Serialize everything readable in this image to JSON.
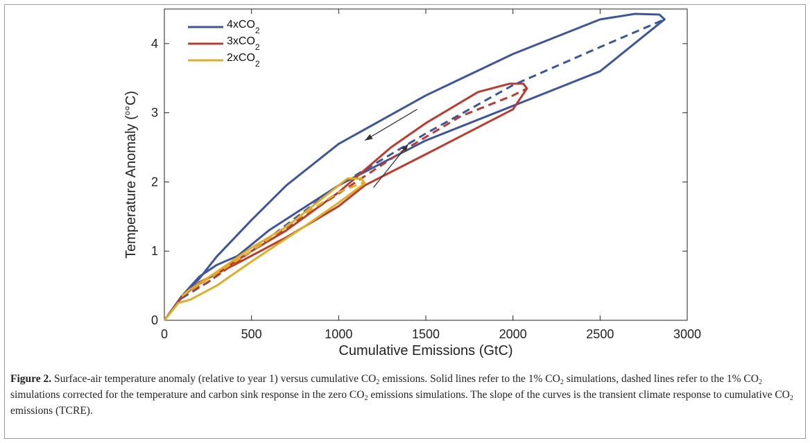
{
  "figure": {
    "caption_label": "Figure 2.",
    "caption_segments": [
      {
        "t": " Surface-air temperature anomaly (relative to year 1) versus cumulative CO"
      },
      {
        "sub": "2"
      },
      {
        "t": " emissions. Solid lines refer to the 1% CO"
      },
      {
        "sub": "2"
      },
      {
        "t": " simulations, dashed lines refer to the 1% CO"
      },
      {
        "sub": "2"
      },
      {
        "t": " simulations corrected for the temperature and carbon sink response in the zero CO"
      },
      {
        "sub": "2"
      },
      {
        "t": " emissions simulations. The slope of the curves is the transient climate response to cumulative CO"
      },
      {
        "sub": "2"
      },
      {
        "t": " emissions (TCRE)."
      }
    ]
  },
  "chart_data": {
    "type": "line",
    "xlabel": "Cumulative Emissions (GtC)",
    "ylabel_main": "Temperature Anomaly (",
    "ylabel_unit": "°C)",
    "xlim": [
      0,
      3000
    ],
    "ylim": [
      0,
      4.5
    ],
    "xticks": [
      0,
      500,
      1000,
      1500,
      2000,
      2500,
      3000
    ],
    "yticks": [
      0,
      1,
      2,
      3,
      4
    ],
    "grid": false,
    "legend_position": "top-left",
    "series": [
      {
        "name": "4xCO",
        "name_sub": "2",
        "color": "#3a55a4",
        "solid": [
          [
            0,
            0
          ],
          [
            100,
            0.35
          ],
          [
            200,
            0.63
          ],
          [
            300,
            0.8
          ],
          [
            420,
            0.93
          ],
          [
            600,
            1.3
          ],
          [
            1000,
            1.95
          ],
          [
            1500,
            2.6
          ],
          [
            2000,
            3.1
          ],
          [
            2500,
            3.6
          ],
          [
            2820,
            4.25
          ],
          [
            2870,
            4.35
          ],
          [
            2840,
            4.42
          ],
          [
            2700,
            4.43
          ],
          [
            2500,
            4.35
          ],
          [
            2000,
            3.85
          ],
          [
            1500,
            3.25
          ],
          [
            1000,
            2.55
          ],
          [
            700,
            1.95
          ],
          [
            500,
            1.45
          ],
          [
            300,
            0.92
          ],
          [
            200,
            0.6
          ],
          [
            130,
            0.42
          ],
          [
            100,
            0.32
          ]
        ],
        "dashed": [
          [
            100,
            0.32
          ],
          [
            250,
            0.55
          ],
          [
            500,
            1.0
          ],
          [
            1000,
            1.95
          ],
          [
            1500,
            2.7
          ],
          [
            2000,
            3.4
          ],
          [
            2500,
            3.95
          ],
          [
            2870,
            4.35
          ]
        ]
      },
      {
        "name": "3xCO",
        "name_sub": "2",
        "color": "#c0392b",
        "solid": [
          [
            0,
            0
          ],
          [
            100,
            0.33
          ],
          [
            200,
            0.55
          ],
          [
            400,
            0.8
          ],
          [
            700,
            1.2
          ],
          [
            1000,
            1.65
          ],
          [
            1150,
            1.95
          ],
          [
            1500,
            2.4
          ],
          [
            2000,
            3.05
          ],
          [
            2080,
            3.35
          ],
          [
            2060,
            3.42
          ],
          [
            1980,
            3.42
          ],
          [
            1800,
            3.3
          ],
          [
            1500,
            2.85
          ],
          [
            1300,
            2.5
          ],
          [
            1000,
            1.85
          ],
          [
            700,
            1.3
          ],
          [
            500,
            1.0
          ],
          [
            300,
            0.68
          ],
          [
            150,
            0.45
          ],
          [
            100,
            0.35
          ]
        ],
        "dashed": [
          [
            100,
            0.35
          ],
          [
            250,
            0.55
          ],
          [
            500,
            1.0
          ],
          [
            800,
            1.5
          ],
          [
            1100,
            2.0
          ],
          [
            1400,
            2.5
          ],
          [
            1700,
            2.95
          ],
          [
            2000,
            3.25
          ],
          [
            2080,
            3.35
          ]
        ]
      },
      {
        "name": "2xCO",
        "name_sub": "2",
        "color": "#e1ad21",
        "solid": [
          [
            0,
            0
          ],
          [
            80,
            0.25
          ],
          [
            150,
            0.3
          ],
          [
            300,
            0.5
          ],
          [
            500,
            0.85
          ],
          [
            800,
            1.35
          ],
          [
            1000,
            1.7
          ],
          [
            1150,
            1.98
          ],
          [
            1130,
            2.05
          ],
          [
            1050,
            2.05
          ],
          [
            900,
            1.75
          ],
          [
            700,
            1.35
          ],
          [
            500,
            1.05
          ],
          [
            300,
            0.7
          ],
          [
            150,
            0.45
          ],
          [
            100,
            0.35
          ]
        ],
        "dashed": [
          [
            100,
            0.35
          ],
          [
            250,
            0.6
          ],
          [
            500,
            1.0
          ],
          [
            750,
            1.45
          ],
          [
            1000,
            1.85
          ],
          [
            1150,
            2.0
          ]
        ]
      }
    ],
    "annotations": [
      {
        "type": "arrow",
        "from": [
          1200,
          1.92
        ],
        "to": [
          1400,
          2.55
        ],
        "color": "#333333"
      },
      {
        "type": "arrow",
        "from": [
          1450,
          3.05
        ],
        "to": [
          1150,
          2.6
        ],
        "color": "#333333"
      }
    ]
  }
}
